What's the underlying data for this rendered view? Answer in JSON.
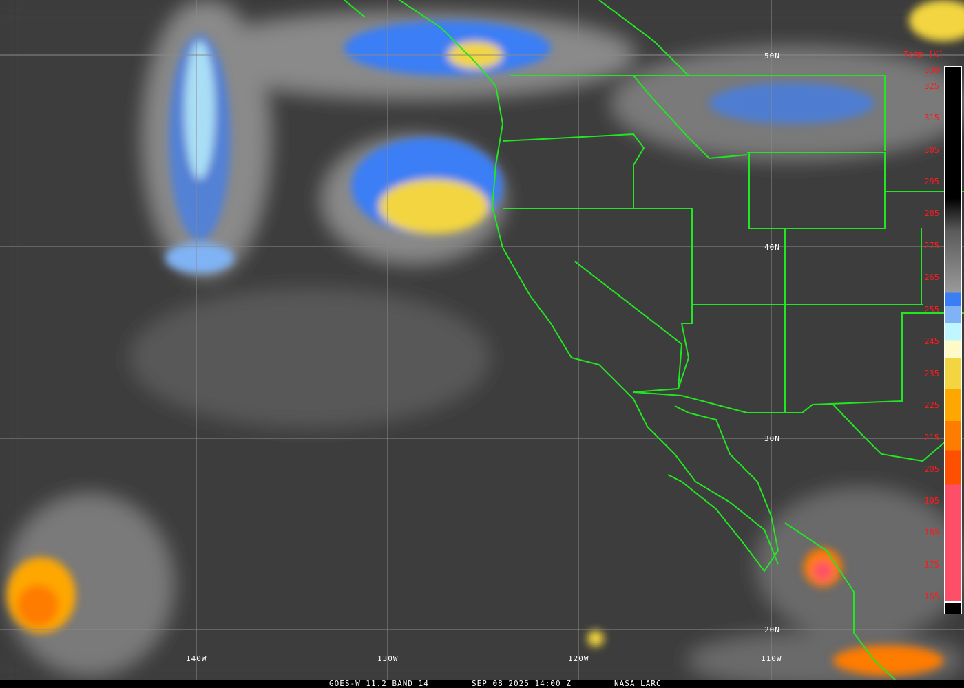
{
  "title": "GOES-W 11.2 BAND 14",
  "timestamp": "SEP 08 2025 14:00 Z",
  "credit": "NASA LARC",
  "colorbar": {
    "title": "Temp [K]",
    "ticks": [
      "330",
      "325",
      "315",
      "305",
      "295",
      "285",
      "275",
      "265",
      "255",
      "245",
      "235",
      "225",
      "215",
      "205",
      "195",
      "185",
      "175",
      "165"
    ],
    "colors": [
      "#000000",
      "#9a9a9a",
      "#3a7ef5",
      "#7fb3f5",
      "#bff6ff",
      "#fefac8",
      "#f2d541",
      "#fea700",
      "#fe7c00",
      "#fe5000",
      "#ff4f68"
    ]
  },
  "lat_labels": [
    "50N",
    "40N",
    "30N",
    "20N"
  ],
  "lon_labels": [
    "140W",
    "130W",
    "120W",
    "110W"
  ],
  "colors": {
    "boundaries": "#22e622",
    "grid": "#8a8a8a",
    "tick_text": "#ff1a1a"
  }
}
